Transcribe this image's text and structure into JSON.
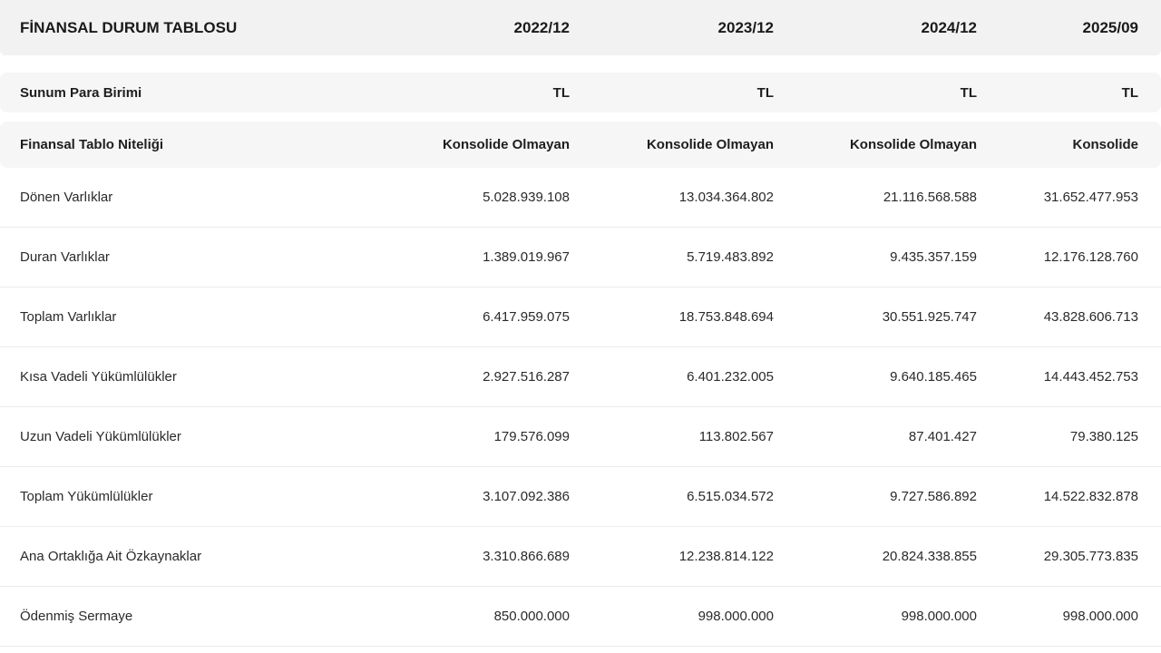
{
  "header": {
    "title": "FİNANSAL DURUM TABLOSU",
    "periods": [
      "2022/12",
      "2023/12",
      "2024/12",
      "2025/09"
    ]
  },
  "currency_row": {
    "label": "Sunum Para Birimi",
    "values": [
      "TL",
      "TL",
      "TL",
      "TL"
    ]
  },
  "nature_row": {
    "label": "Finansal Tablo Niteliği",
    "values": [
      "Konsolide Olmayan",
      "Konsolide Olmayan",
      "Konsolide Olmayan",
      "Konsolide"
    ]
  },
  "rows": [
    {
      "label": "Dönen Varlıklar",
      "values": [
        "5.028.939.108",
        "13.034.364.802",
        "21.116.568.588",
        "31.652.477.953"
      ]
    },
    {
      "label": "Duran Varlıklar",
      "values": [
        "1.389.019.967",
        "5.719.483.892",
        "9.435.357.159",
        "12.176.128.760"
      ]
    },
    {
      "label": "Toplam Varlıklar",
      "values": [
        "6.417.959.075",
        "18.753.848.694",
        "30.551.925.747",
        "43.828.606.713"
      ]
    },
    {
      "label": "Kısa Vadeli Yükümlülükler",
      "values": [
        "2.927.516.287",
        "6.401.232.005",
        "9.640.185.465",
        "14.443.452.753"
      ]
    },
    {
      "label": "Uzun Vadeli Yükümlülükler",
      "values": [
        "179.576.099",
        "113.802.567",
        "87.401.427",
        "79.380.125"
      ]
    },
    {
      "label": "Toplam Yükümlülükler",
      "values": [
        "3.107.092.386",
        "6.515.034.572",
        "9.727.586.892",
        "14.522.832.878"
      ]
    },
    {
      "label": "Ana Ortaklığa Ait Özkaynaklar",
      "values": [
        "3.310.866.689",
        "12.238.814.122",
        "20.824.338.855",
        "29.305.773.835"
      ]
    },
    {
      "label": "Ödenmiş Sermaye",
      "values": [
        "850.000.000",
        "998.000.000",
        "998.000.000",
        "998.000.000"
      ]
    }
  ]
}
